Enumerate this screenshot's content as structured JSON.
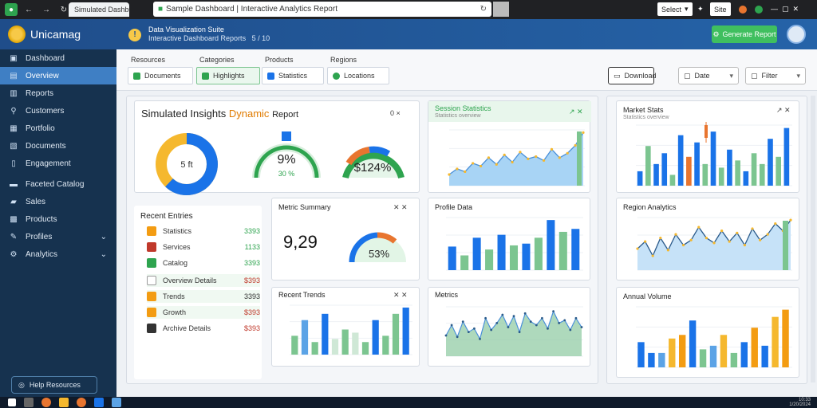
{
  "browser": {
    "tab_title": "Simulated Dashboard",
    "url": "Sample Dashboard | Interactive Analytics Report",
    "top_select": "Select",
    "top_site": "Site"
  },
  "app": {
    "name": "Unicamag",
    "header_title": "Data Visualization Suite",
    "header_sub": "Interactive Dashboard Reports",
    "header_sub_extra": "5 / 10",
    "header_action": "Generate Report"
  },
  "sidebar": {
    "items": [
      {
        "label": "Dashboard",
        "icon": "home"
      },
      {
        "label": "Overview",
        "icon": "overview"
      },
      {
        "label": "Reports",
        "icon": "reports"
      },
      {
        "label": "Customers",
        "icon": "customers"
      },
      {
        "label": "Portfolio",
        "icon": "portfolio"
      },
      {
        "label": "Documents",
        "icon": "documents"
      },
      {
        "label": "Engagement",
        "icon": "engagement"
      },
      {
        "label": "Faceted Catalog",
        "icon": "catalog"
      },
      {
        "label": "Sales",
        "icon": "sales"
      },
      {
        "label": "Products",
        "icon": "products"
      },
      {
        "label": "Profiles",
        "icon": "profiles"
      },
      {
        "label": "Analytics",
        "icon": "analytics"
      }
    ],
    "bottom_button": "Help Resources"
  },
  "filters": {
    "groups": [
      {
        "label": "Resources",
        "value": "Documents"
      },
      {
        "label": "Categories",
        "value": "Highlights"
      },
      {
        "label": "Products",
        "value": "Statistics"
      },
      {
        "label": "Regions",
        "value": "Locations"
      }
    ],
    "right": [
      {
        "label": "Download",
        "icon": "download-icon"
      },
      {
        "label": "Date",
        "icon": "calendar-icon"
      },
      {
        "label": "Filter",
        "icon": "filter-icon"
      }
    ]
  },
  "overview": {
    "title_a": "Simulated Insights",
    "title_b": "Dynamic",
    "title_c": "Report",
    "icons": "0 ×",
    "donut_center": "5 ft",
    "gauge1_value": "9%",
    "gauge1_sub": "30 %",
    "gauge2_value": "$124%"
  },
  "transactions": {
    "title": "Recent Entries",
    "rows": [
      {
        "label": "Statistics",
        "value": "3393",
        "color": "#f39c12",
        "val_color": "#2ea44f"
      },
      {
        "label": "Services",
        "value": "1133",
        "color": "#c0392b",
        "val_color": "#2ea44f"
      },
      {
        "label": "Catalog",
        "value": "3393",
        "color": "#2ea44f",
        "val_color": "#2ea44f"
      },
      {
        "label": "Overview Details",
        "value": "$393",
        "color": "#ffffff",
        "val_color": "#c0392b"
      },
      {
        "label": "Trends",
        "value": "3393",
        "color": "#f39c12",
        "val_color": "#333333"
      },
      {
        "label": "Growth",
        "value": "$393",
        "color": "#f39c12",
        "val_color": "#c0392b"
      },
      {
        "label": "Archive Details",
        "value": "$393",
        "color": "#333333",
        "val_color": "#c0392b"
      }
    ]
  },
  "kpi": {
    "title": "Metric Summary",
    "value": "9,29",
    "gauge_value": "53%"
  },
  "bar_small": {
    "title": "Recent Trends"
  },
  "trend_top": {
    "title": "Session Statistics",
    "subtitle": "Statistics overview"
  },
  "bars_mid": {
    "title": "Profile Data"
  },
  "area_bottom": {
    "title": "Metrics"
  },
  "candle": {
    "title": "Market Stats",
    "subtitle": "Statistics overview"
  },
  "right_line": {
    "title": "Region Analytics"
  },
  "right_bars": {
    "title": "Annual Volume"
  },
  "taskbar": {
    "time": "10:33",
    "date": "1/20/2024"
  },
  "chart_data": [
    {
      "type": "pie",
      "name": "donut",
      "values": [
        62,
        38
      ],
      "colors": [
        "#1a73e8",
        "#f5b82e"
      ]
    },
    {
      "type": "line",
      "name": "session-trend",
      "values": [
        20,
        30,
        25,
        40,
        35,
        50,
        38,
        55,
        42,
        60,
        48,
        52,
        45,
        65,
        50,
        58,
        72,
        95
      ]
    },
    {
      "type": "bar",
      "name": "profile-bars",
      "series": [
        {
          "name": "blue",
          "values": [
            40,
            0,
            55,
            0,
            60,
            0,
            45,
            0,
            85,
            0,
            70
          ]
        },
        {
          "name": "green",
          "values": [
            0,
            25,
            0,
            35,
            0,
            42,
            0,
            55,
            0,
            65,
            0
          ]
        }
      ]
    },
    {
      "type": "bar",
      "name": "recent-bars",
      "values": [
        30,
        55,
        20,
        65,
        25,
        40,
        35,
        20,
        55,
        30,
        65,
        75
      ],
      "colors": [
        "#7cc590",
        "#5ba3e6",
        "#7cc590",
        "#1a73e8",
        "#cfe8d6",
        "#7cc590",
        "#cfe8d6",
        "#7cc590",
        "#1a73e8",
        "#7cc590",
        "#7cc590",
        "#1a73e8"
      ]
    },
    {
      "type": "area",
      "name": "metrics-area",
      "values": [
        30,
        45,
        28,
        50,
        35,
        40,
        25,
        55,
        38,
        48,
        60,
        42,
        58,
        35,
        62,
        50,
        45,
        55,
        40,
        65,
        48,
        52,
        38,
        55,
        42
      ]
    },
    {
      "type": "bar",
      "name": "candle-bars",
      "values": [
        20,
        55,
        30,
        45,
        15,
        70,
        40,
        60,
        30,
        75,
        25,
        50,
        35,
        20,
        45,
        30,
        65,
        40,
        80
      ],
      "colors": [
        "#1a73e8",
        "#7cc590",
        "#1a73e8",
        "#1a73e8",
        "#7cc590",
        "#1a73e8",
        "#e8752f",
        "#1a73e8",
        "#7cc590",
        "#1a73e8",
        "#7cc590",
        "#1a73e8",
        "#7cc590",
        "#1a73e8",
        "#7cc590",
        "#7cc590",
        "#1a73e8",
        "#7cc590",
        "#1a73e8"
      ]
    },
    {
      "type": "line",
      "name": "region-trend",
      "values": [
        30,
        40,
        20,
        45,
        28,
        50,
        35,
        42,
        60,
        45,
        38,
        55,
        40,
        52,
        35,
        58,
        42,
        50,
        65,
        55,
        70
      ]
    },
    {
      "type": "bar",
      "name": "annual-bars",
      "values": [
        35,
        20,
        20,
        40,
        45,
        65,
        25,
        30,
        45,
        20,
        35,
        55,
        30,
        70,
        80
      ],
      "colors": [
        "#1a73e8",
        "#1a73e8",
        "#5ba3e6",
        "#f5b82e",
        "#f39c12",
        "#1a73e8",
        "#7cc590",
        "#5ba3e6",
        "#f5b82e",
        "#7cc590",
        "#1a73e8",
        "#f39c12",
        "#1a73e8",
        "#f5b82e",
        "#f39c12"
      ]
    }
  ]
}
